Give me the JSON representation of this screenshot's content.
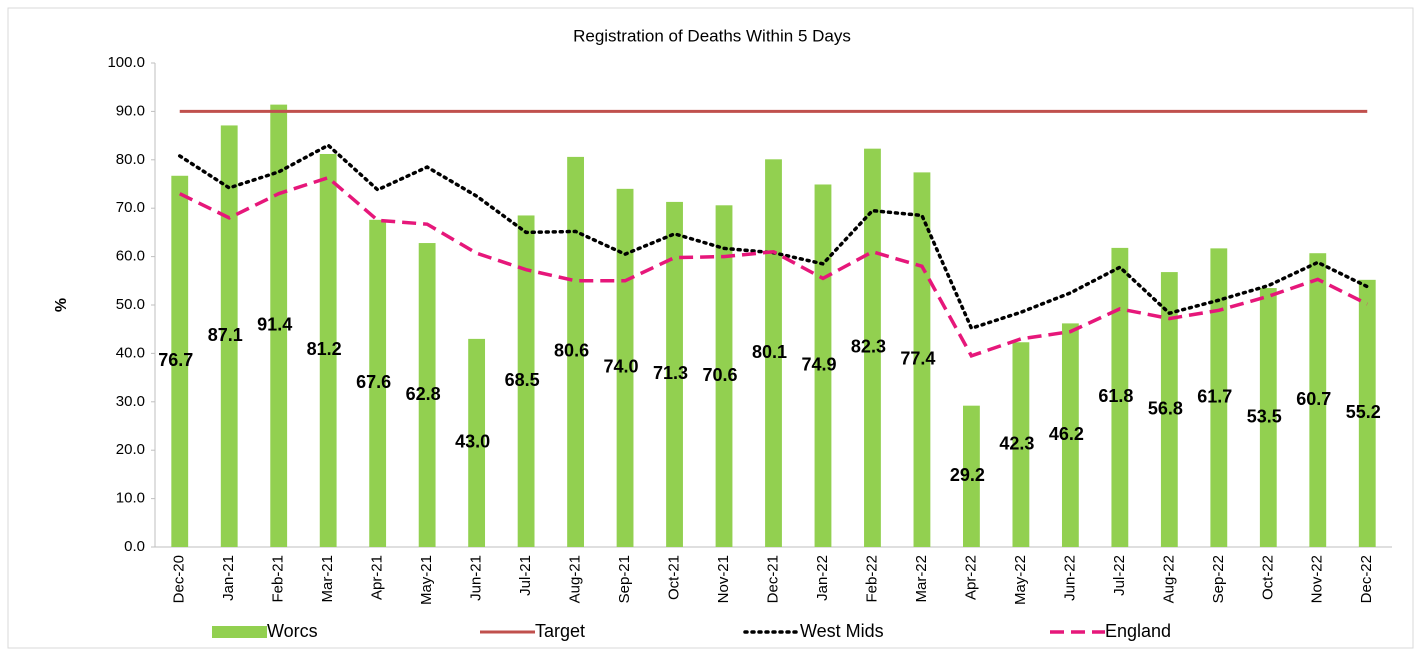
{
  "chart_data": {
    "type": "bar",
    "title": "Registration of Deaths Within 5 Days",
    "y_label": "%",
    "categories": [
      "Dec-20",
      "Jan-21",
      "Feb-21",
      "Mar-21",
      "Apr-21",
      "May-21",
      "Jun-21",
      "Jul-21",
      "Aug-21",
      "Sep-21",
      "Oct-21",
      "Nov-21",
      "Dec-21",
      "Jan-22",
      "Feb-22",
      "Mar-22",
      "Apr-22",
      "May-22",
      "Jun-22",
      "Jul-22",
      "Aug-22",
      "Sep-22",
      "Oct-22",
      "Nov-22",
      "Dec-22"
    ],
    "series": [
      {
        "name": "Worcs",
        "type": "bar",
        "color": "#92d050",
        "values": [
          76.7,
          87.1,
          91.4,
          81.2,
          67.6,
          62.8,
          43.0,
          68.5,
          80.6,
          74.0,
          71.3,
          70.6,
          80.1,
          74.9,
          82.3,
          77.4,
          29.2,
          42.3,
          46.2,
          61.8,
          56.8,
          61.7,
          53.5,
          60.7,
          55.2
        ],
        "value_labels": [
          "76.7",
          "87.1",
          "91.4",
          "81.2",
          "67.6",
          "62.8",
          "43.0",
          "68.5",
          "80.6",
          "74.0",
          "71.3",
          "70.6",
          "80.1",
          "74.9",
          "82.3",
          "77.4",
          "29.2",
          "42.3",
          "46.2",
          "61.8",
          "56.8",
          "61.7",
          "53.5",
          "60.7",
          "55.2"
        ]
      },
      {
        "name": "Target",
        "type": "line",
        "style": "solid",
        "color": "#c0504d",
        "values": [
          90,
          90,
          90,
          90,
          90,
          90,
          90,
          90,
          90,
          90,
          90,
          90,
          90,
          90,
          90,
          90,
          90,
          90,
          90,
          90,
          90,
          90,
          90,
          90,
          90
        ]
      },
      {
        "name": "West Mids",
        "type": "line",
        "style": "dotted",
        "color": "#000000",
        "values": [
          80.8,
          74.2,
          77.5,
          83.0,
          73.8,
          78.5,
          72.5,
          65.0,
          65.2,
          60.5,
          64.7,
          61.7,
          60.8,
          58.5,
          69.5,
          68.5,
          45.2,
          48.5,
          52.5,
          57.8,
          48.3,
          51.0,
          54.0,
          58.8,
          53.8
        ]
      },
      {
        "name": "England",
        "type": "line",
        "style": "dashed",
        "color": "#e6177a",
        "values": [
          73.0,
          68.0,
          73.0,
          76.3,
          67.5,
          66.7,
          60.7,
          57.3,
          55.0,
          55.0,
          59.8,
          60.0,
          61.0,
          55.5,
          61.0,
          58.0,
          39.5,
          43.0,
          44.5,
          49.2,
          47.2,
          48.9,
          51.8,
          55.3,
          50.2
        ]
      }
    ],
    "ylim": [
      0,
      100
    ],
    "yticks": [
      {
        "value": 0,
        "label": "0.0"
      },
      {
        "value": 10,
        "label": "10.0"
      },
      {
        "value": 20,
        "label": "20.0"
      },
      {
        "value": 30,
        "label": "30.0"
      },
      {
        "value": 40,
        "label": "40.0"
      },
      {
        "value": 50,
        "label": "50.0"
      },
      {
        "value": 60,
        "label": "60.0"
      },
      {
        "value": 70,
        "label": "70.0"
      },
      {
        "value": 80,
        "label": "80.0"
      },
      {
        "value": 90,
        "label": "90.0"
      },
      {
        "value": 100,
        "label": "100.0"
      }
    ],
    "grid": false,
    "legend": "bottom"
  }
}
